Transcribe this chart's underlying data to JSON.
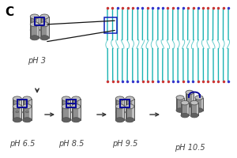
{
  "panel_label": "C",
  "panel_label_fontsize": 11,
  "panel_label_color": "#000000",
  "background_color": "#ffffff",
  "ph_labels": [
    "pH 3",
    "pH 6.5",
    "pH 8.5",
    "pH 9.5",
    "pH 10.5"
  ],
  "ph_label_fontsize": 7.0,
  "cylinder_light": "#c0c0c0",
  "cylinder_mid": "#909090",
  "cylinder_dark": "#606060",
  "cylinder_edge": "#555555",
  "connector_color": "#0a0a99",
  "arrow_color": "#333333",
  "teal_color": "#00aaaa",
  "red_color": "#cc3333",
  "blue_color": "#3333cc",
  "line_color": "#222222"
}
